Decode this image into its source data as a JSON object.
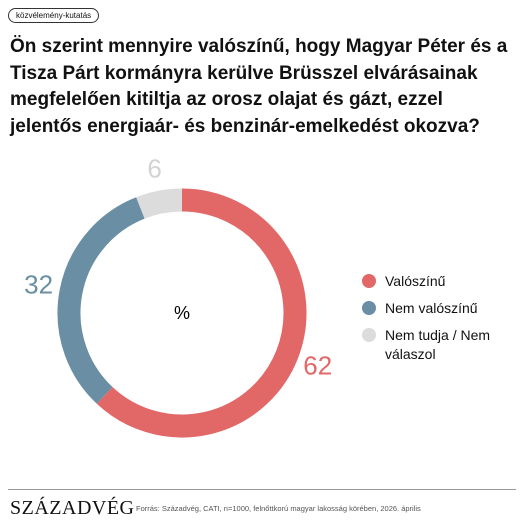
{
  "tag": "közvélemény-kutatás",
  "chart_data": {
    "type": "donut",
    "title": "Ön szerint mennyire valószínű, hogy Magyar Péter és a Tisza Párt kormányra kerülve Brüsszel elvárásainak megfelelően kitiltja az orosz olajat és gázt, ezzel jelentős energiaár- és benzinár-emelkedést okozva?",
    "center_label": "%",
    "categories": [
      "Valószínű",
      "Nem valószínű",
      "Nem tudja / Nem válaszol"
    ],
    "values": [
      62,
      32,
      6
    ],
    "colors": [
      "#e26868",
      "#6a8ea3",
      "#dcdcdc"
    ],
    "label_colors": [
      "#e26868",
      "#6a8ea3",
      "#d3d3d3"
    ]
  },
  "logo": "SZÁZADVÉG",
  "source": "Forrás: Századvég, CATI, n=1000, felnőttkorú magyar lakosság körében, 2026. április"
}
